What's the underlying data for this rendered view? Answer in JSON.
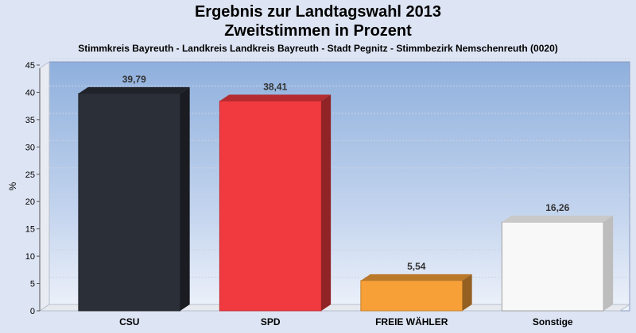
{
  "chart_data": {
    "type": "bar",
    "title": "Ergebnis zur Landtagswahl 2013",
    "title_line2": "Zweitstimmen in Prozent",
    "subtitle": "Stimmkreis Bayreuth - Landkreis Landkreis Bayreuth - Stadt Pegnitz - Stimmbezirk Nemschenreuth (0020)",
    "ylabel": "%",
    "xlabel": "",
    "ylim": [
      0,
      45
    ],
    "yticks": [
      0,
      5,
      10,
      15,
      20,
      25,
      30,
      35,
      40,
      45
    ],
    "categories": [
      "CSU",
      "SPD",
      "FREIE WÄHLER",
      "Sonstige"
    ],
    "values": [
      39.79,
      38.41,
      5.54,
      16.26
    ],
    "value_labels": [
      "39,79",
      "38,41",
      "5,54",
      "16,26"
    ],
    "colors": [
      "#2b2f38",
      "#f03a40",
      "#f7a038",
      "#f8f8f8"
    ],
    "grid": true,
    "legend": "none"
  }
}
